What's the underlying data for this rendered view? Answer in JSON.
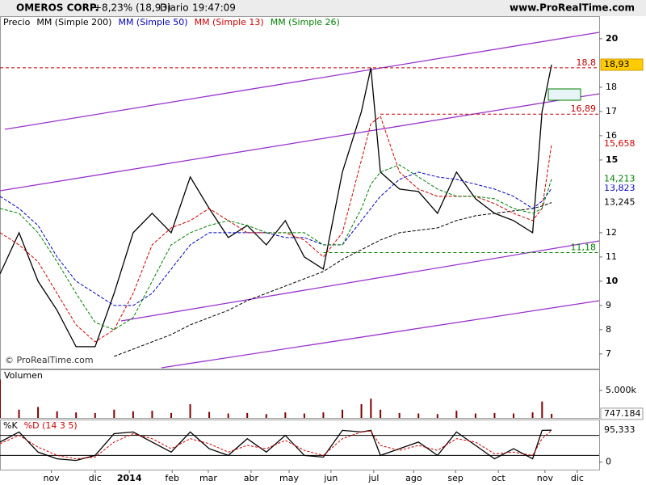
{
  "header": {
    "symbol": "OMEROS CORP.",
    "change": "+8,23% (18,93)",
    "period": "Diario",
    "time": "19:47:09",
    "site": "www.ProRealTime.com",
    "watermark": "© ProRealTime.com"
  },
  "chart_data": [
    {
      "type": "line",
      "x": [
        0,
        2,
        4,
        6,
        8,
        10,
        12,
        14,
        16,
        18,
        20,
        22,
        24,
        26,
        28,
        30,
        32,
        34,
        36,
        38,
        39,
        40,
        42,
        44,
        46,
        48,
        50,
        52,
        54,
        56,
        57,
        58
      ],
      "xlim": [
        0,
        63
      ],
      "ylim": [
        6.43,
        20.33
      ],
      "yticks": [
        7,
        8,
        9,
        10,
        11,
        12,
        15,
        16,
        17,
        18,
        20
      ],
      "grid": false,
      "series": [
        {
          "name": "Precio",
          "color": "#000000",
          "last_label": "18,93",
          "values": [
            10.3,
            12,
            10,
            8.8,
            7.3,
            7.3,
            9.5,
            12,
            12.8,
            12,
            14.3,
            13,
            11.8,
            12.3,
            11.5,
            12.5,
            11,
            10.5,
            14.5,
            17,
            18.8,
            14.5,
            13.8,
            13.7,
            12.8,
            14.5,
            13.4,
            12.8,
            12.5,
            12,
            17,
            18.93
          ]
        },
        {
          "name": "MM (Simple 200)",
          "color": "#000000",
          "last_label": "13,245",
          "values": [
            null,
            null,
            null,
            null,
            null,
            null,
            6.9,
            7.2,
            7.5,
            7.8,
            8.2,
            8.5,
            8.8,
            9.2,
            9.5,
            9.8,
            10.1,
            10.4,
            10.9,
            11.3,
            11.5,
            11.7,
            12,
            12.1,
            12.2,
            12.5,
            12.7,
            12.8,
            12.9,
            13,
            13.1,
            13.245
          ]
        },
        {
          "name": "MM (Simple 50)",
          "color": "#0000c0",
          "last_label": "13,823",
          "values": [
            13.5,
            13,
            12.3,
            11,
            10,
            9.5,
            9,
            9,
            9.5,
            10.5,
            11.5,
            12,
            12,
            12,
            12,
            11.8,
            11.8,
            11.5,
            11.5,
            12.5,
            13,
            13.5,
            14.2,
            14.5,
            14.3,
            14.2,
            14,
            13.8,
            13.5,
            13,
            13.3,
            13.823
          ]
        },
        {
          "name": "MM (Simple 13)",
          "color": "#d00000",
          "last_label": "15,658",
          "values": [
            12,
            11.5,
            10.8,
            9.5,
            8.2,
            7.5,
            8,
            9.5,
            11.5,
            12.2,
            12.5,
            13,
            12.5,
            12,
            12,
            12,
            11.7,
            11,
            12,
            15,
            16.5,
            16.8,
            14.5,
            13.8,
            13.5,
            13.5,
            13.5,
            13.2,
            12.8,
            12.5,
            13,
            15.658
          ]
        },
        {
          "name": "MM (Simple 26)",
          "color": "#008000",
          "last_label": "14,213",
          "values": [
            13,
            12.8,
            12,
            10.8,
            9.5,
            8.3,
            8,
            8.5,
            10,
            11.5,
            12,
            12.3,
            12.5,
            12.3,
            12,
            12,
            12,
            11.5,
            11.5,
            13,
            14,
            14.5,
            14.8,
            14.3,
            13.8,
            13.5,
            13.5,
            13.4,
            13,
            12.8,
            13,
            14.213
          ]
        }
      ],
      "reference_lines": [
        {
          "value": 18.8,
          "label": "18,8",
          "color": "#c00000",
          "x_from": 0
        },
        {
          "value": 16.89,
          "label": "16,89",
          "color": "#c00000",
          "x_from": 40
        },
        {
          "value": 11.18,
          "label": "11,18",
          "color": "#008000",
          "x_from": 34
        }
      ]
    },
    {
      "type": "bar",
      "title": "Volumen",
      "x": [
        0,
        2,
        4,
        6,
        8,
        10,
        12,
        14,
        16,
        18,
        20,
        22,
        24,
        26,
        28,
        30,
        32,
        34,
        36,
        38,
        39,
        40,
        42,
        44,
        46,
        48,
        50,
        52,
        54,
        56,
        57,
        58
      ],
      "xlim": [
        0,
        63
      ],
      "ylim": [
        0,
        8400
      ],
      "yticks": [
        {
          "value": 5000,
          "label": "5.000k"
        }
      ],
      "color": "#800000",
      "values": [
        7000,
        1500,
        2000,
        1200,
        1000,
        900,
        1500,
        1200,
        1300,
        900,
        2500,
        1100,
        800,
        900,
        700,
        1000,
        800,
        1000,
        1500,
        2500,
        3500,
        1500,
        900,
        800,
        700,
        1300,
        800,
        900,
        800,
        1000,
        3000,
        747.184
      ],
      "last_label": "747.184"
    },
    {
      "type": "line",
      "x": [
        0,
        2,
        4,
        6,
        8,
        10,
        12,
        14,
        16,
        18,
        20,
        22,
        24,
        26,
        28,
        30,
        32,
        34,
        36,
        38,
        39,
        40,
        42,
        44,
        46,
        48,
        50,
        52,
        54,
        56,
        57,
        58
      ],
      "xlim": [
        0,
        63
      ],
      "ylim": [
        -20,
        120
      ],
      "yticks": [
        0
      ],
      "xticks": [
        {
          "value": 5.4,
          "label": "nov"
        },
        {
          "value": 10,
          "label": "dic"
        },
        {
          "value": 13.6,
          "label": "2014"
        },
        {
          "value": 18.1,
          "label": "feb"
        },
        {
          "value": 21.9,
          "label": "mar"
        },
        {
          "value": 26.4,
          "label": "abr"
        },
        {
          "value": 30.4,
          "label": "may"
        },
        {
          "value": 34.8,
          "label": "jun"
        },
        {
          "value": 39.3,
          "label": "jul"
        },
        {
          "value": 43.5,
          "label": "ago"
        },
        {
          "value": 47.9,
          "label": "sep"
        },
        {
          "value": 52.4,
          "label": "oct"
        },
        {
          "value": 57.3,
          "label": "nov"
        },
        {
          "value": 60.7,
          "label": "dic"
        }
      ],
      "series": [
        {
          "name": "%K",
          "color": "#000000",
          "last_label": "95,333",
          "values": [
            60,
            90,
            30,
            10,
            5,
            20,
            85,
            90,
            60,
            30,
            90,
            40,
            20,
            70,
            30,
            80,
            20,
            15,
            95,
            90,
            95,
            20,
            40,
            60,
            20,
            90,
            50,
            10,
            40,
            10,
            95,
            95.333
          ]
        },
        {
          "name": "%D (14 3 5)",
          "color": "#d00000",
          "values": [
            55,
            80,
            45,
            20,
            10,
            15,
            60,
            85,
            70,
            40,
            70,
            55,
            30,
            50,
            40,
            65,
            35,
            20,
            70,
            90,
            93,
            50,
            35,
            50,
            35,
            70,
            60,
            25,
            30,
            20,
            70,
            95
          ]
        }
      ],
      "reference_lines": [
        {
          "value": 80
        },
        {
          "value": 20
        }
      ]
    }
  ]
}
